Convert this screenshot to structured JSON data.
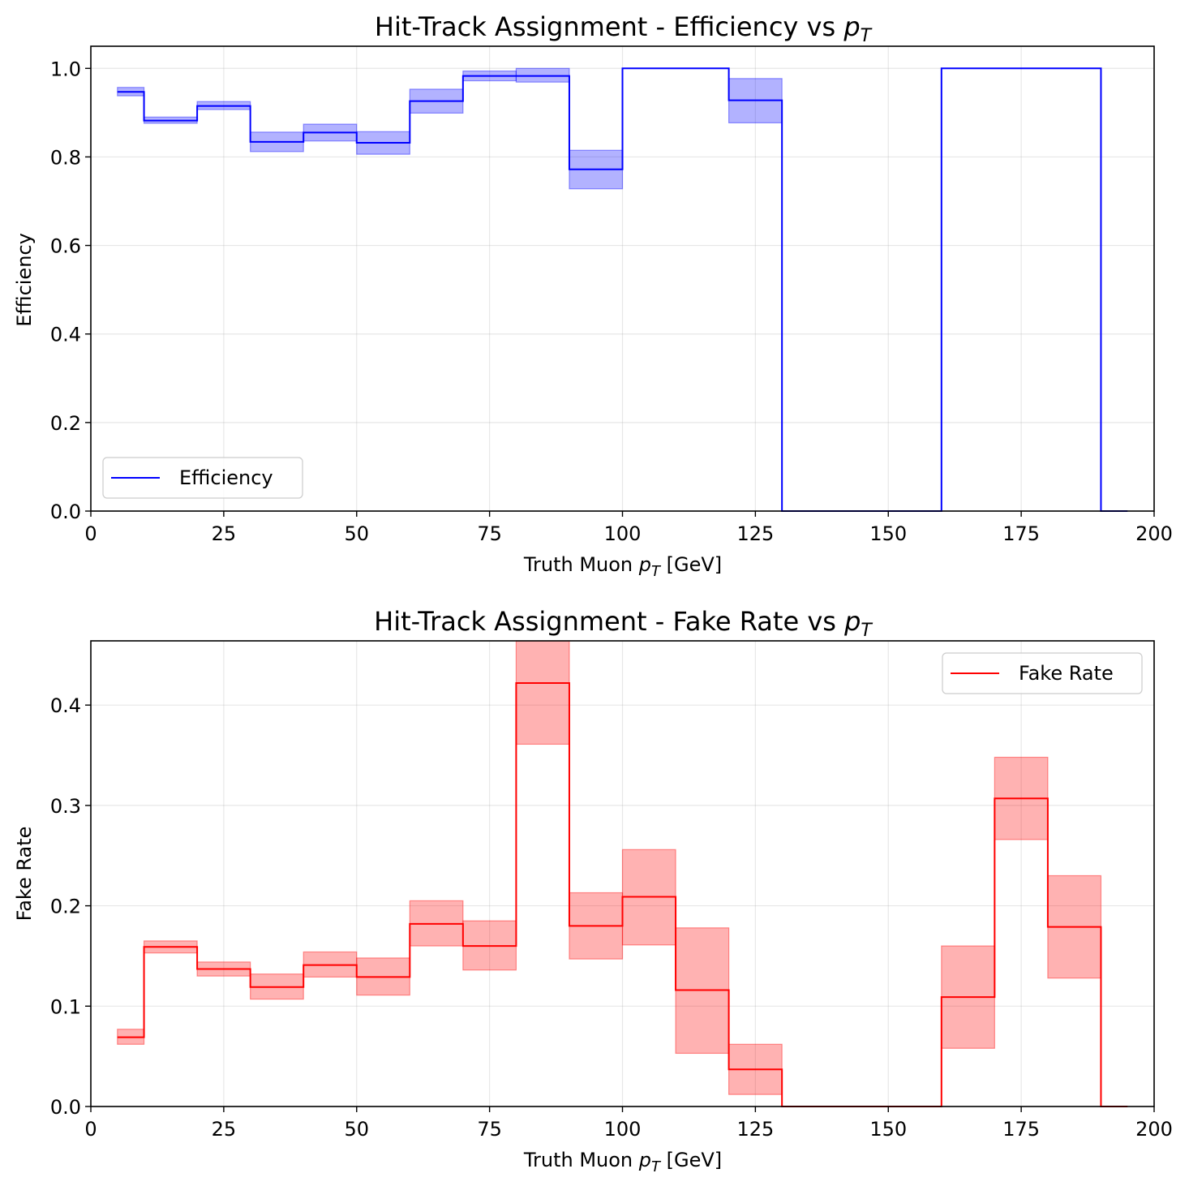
{
  "chart_data": [
    {
      "type": "histogram-step",
      "title": "Hit-Track Assignment - Efficiency vs ",
      "title_math": "p",
      "title_sub": "T",
      "xlabel": "Truth Muon ",
      "xlabel_math": "p",
      "xlabel_sub": "T",
      "xlabel_unit": " [GeV]",
      "ylabel": "Efficiency",
      "xlim": [
        0,
        200
      ],
      "ylim": [
        0,
        1.05
      ],
      "xticks": [
        0,
        25,
        50,
        75,
        100,
        125,
        150,
        175,
        200
      ],
      "xtick_labels": [
        "0",
        "25",
        "50",
        "75",
        "100",
        "125",
        "150",
        "175",
        "200"
      ],
      "yticks": [
        0,
        0.2,
        0.4,
        0.6,
        0.8,
        1.0
      ],
      "ytick_labels": [
        "0.0",
        "0.2",
        "0.4",
        "0.6",
        "0.8",
        "1.0"
      ],
      "grid": true,
      "legend": {
        "position": "lower-left",
        "label": "Efficiency"
      },
      "line_color": "#0000ff",
      "band_color": "#0000ff",
      "band_alpha": 0.3,
      "bin_edges": [
        5,
        10,
        20,
        30,
        40,
        50,
        60,
        70,
        80,
        90,
        100,
        110,
        120,
        130,
        140,
        150,
        160,
        170,
        180,
        190,
        195
      ],
      "values": [
        0.947,
        0.882,
        0.915,
        0.834,
        0.855,
        0.832,
        0.926,
        0.983,
        0.983,
        0.772,
        1.0,
        1.0,
        0.928,
        0.0,
        0.0,
        0.0,
        1.0,
        1.0,
        1.0,
        0.0
      ],
      "err_low": [
        0.938,
        0.876,
        0.907,
        0.812,
        0.836,
        0.806,
        0.899,
        0.972,
        0.969,
        0.728,
        1.0,
        1.0,
        0.877,
        0.0,
        0.0,
        0.0,
        1.0,
        1.0,
        1.0,
        0.0
      ],
      "err_high": [
        0.957,
        0.89,
        0.925,
        0.856,
        0.874,
        0.857,
        0.953,
        0.994,
        1.0,
        0.815,
        1.0,
        1.0,
        0.977,
        0.0,
        0.0,
        0.0,
        1.0,
        1.0,
        1.0,
        0.0
      ]
    },
    {
      "type": "histogram-step",
      "title": "Hit-Track Assignment - Fake Rate vs ",
      "title_math": "p",
      "title_sub": "T",
      "xlabel": "Truth Muon ",
      "xlabel_math": "p",
      "xlabel_sub": "T",
      "xlabel_unit": " [GeV]",
      "ylabel": "Fake Rate",
      "xlim": [
        0,
        200
      ],
      "ylim": [
        0,
        0.464
      ],
      "xticks": [
        0,
        25,
        50,
        75,
        100,
        125,
        150,
        175,
        200
      ],
      "xtick_labels": [
        "0",
        "25",
        "50",
        "75",
        "100",
        "125",
        "150",
        "175",
        "200"
      ],
      "yticks": [
        0,
        0.1,
        0.2,
        0.3,
        0.4
      ],
      "ytick_labels": [
        "0.0",
        "0.1",
        "0.2",
        "0.3",
        "0.4"
      ],
      "grid": true,
      "legend": {
        "position": "upper-right",
        "label": "Fake Rate"
      },
      "line_color": "#ff0000",
      "band_color": "#ff0000",
      "band_alpha": 0.3,
      "bin_edges": [
        5,
        10,
        20,
        30,
        40,
        50,
        60,
        70,
        80,
        90,
        100,
        110,
        120,
        130,
        140,
        150,
        160,
        170,
        180,
        190,
        195
      ],
      "values": [
        0.069,
        0.159,
        0.137,
        0.119,
        0.141,
        0.129,
        0.182,
        0.16,
        0.422,
        0.18,
        0.209,
        0.116,
        0.037,
        0.0,
        0.0,
        0.0,
        0.109,
        0.307,
        0.179,
        0.0
      ],
      "err_low": [
        0.062,
        0.153,
        0.13,
        0.107,
        0.129,
        0.111,
        0.16,
        0.136,
        0.361,
        0.147,
        0.161,
        0.053,
        0.012,
        0.0,
        0.0,
        0.0,
        0.058,
        0.266,
        0.128,
        0.0
      ],
      "err_high": [
        0.077,
        0.165,
        0.144,
        0.132,
        0.154,
        0.148,
        0.205,
        0.185,
        0.464,
        0.213,
        0.256,
        0.178,
        0.062,
        0.0,
        0.0,
        0.0,
        0.16,
        0.348,
        0.23,
        0.0
      ]
    }
  ]
}
